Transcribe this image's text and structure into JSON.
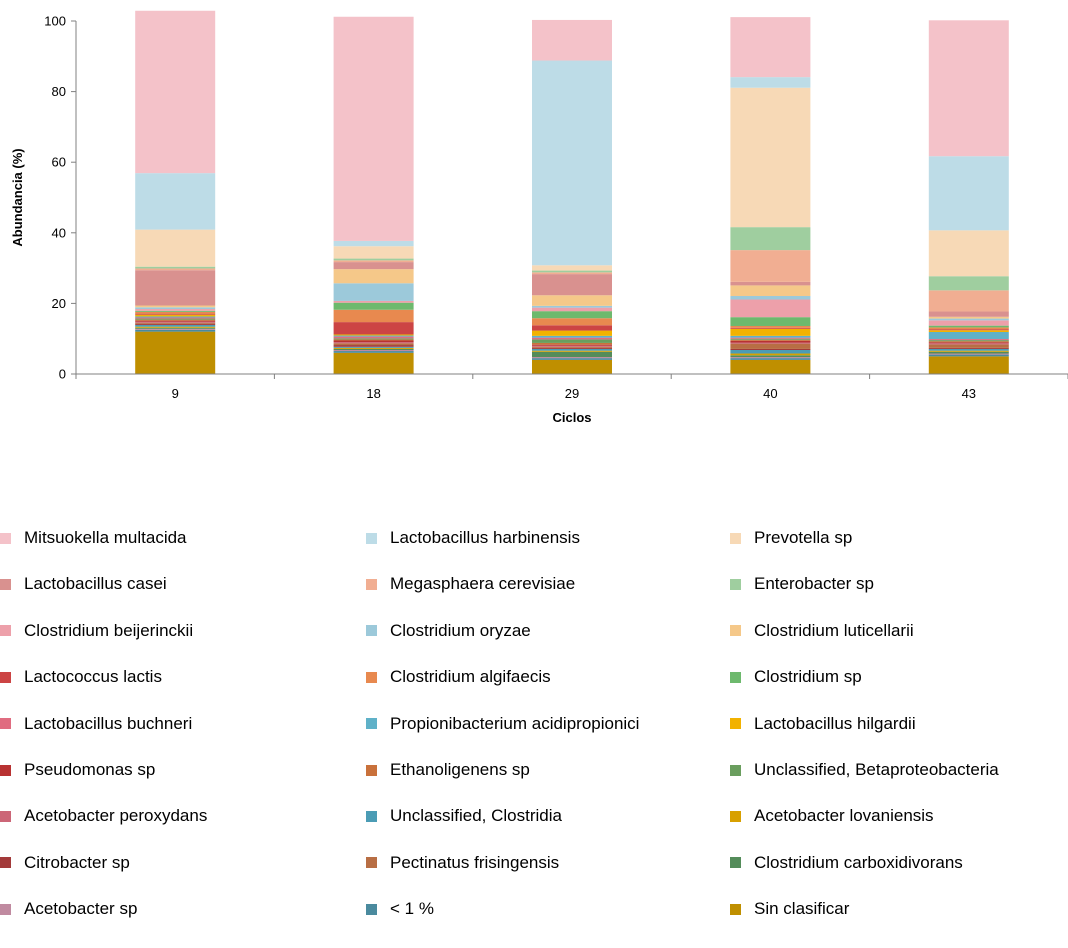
{
  "chart_data": {
    "type": "bar",
    "stacked": true,
    "xlabel": "Ciclos",
    "ylabel": "Abundancia (%)",
    "ylim": [
      0,
      100
    ],
    "yticks": [
      "0",
      "20",
      "40",
      "60",
      "80",
      "100"
    ],
    "grid": false,
    "legend_position": "bottom",
    "categories": [
      "9",
      "18",
      "29",
      "40",
      "43"
    ],
    "series": [
      {
        "name": "Sin clasificar",
        "color": "#BF8F00",
        "values": [
          12,
          6,
          4,
          4,
          5
        ]
      },
      {
        "name": "< 1 %",
        "color": "#4A8A9E",
        "values": [
          0.5,
          0.5,
          0.5,
          0.5,
          0.5
        ]
      },
      {
        "name": "Acetobacter sp",
        "color": "#C08AA0",
        "values": [
          0.3,
          0.3,
          0.3,
          0.3,
          0.3
        ]
      },
      {
        "name": "Clostridium carboxidivorans",
        "color": "#548C5A",
        "values": [
          0.3,
          0.3,
          1.5,
          0.5,
          0.5
        ]
      },
      {
        "name": "Acetobacter lovaniensis",
        "color": "#D8A000",
        "values": [
          0.3,
          0.3,
          0.3,
          0.5,
          0.3
        ]
      },
      {
        "name": "Unclassified,  Clostridia",
        "color": "#4B9CB5",
        "values": [
          0.5,
          0.3,
          0.5,
          1,
          0.5
        ]
      },
      {
        "name": "Citrobacter sp",
        "color": "#A33A3A",
        "values": [
          0.3,
          0.5,
          0.3,
          0.3,
          0.3
        ]
      },
      {
        "name": "Pectinatus frisingensis",
        "color": "#B86E44",
        "values": [
          0.3,
          0.5,
          0.3,
          1.5,
          1
        ]
      },
      {
        "name": "Acetobacter peroxydans",
        "color": "#CC6677",
        "values": [
          0.3,
          0.3,
          0.3,
          0.3,
          0.3
        ]
      },
      {
        "name": "Pseudomonas sp",
        "color": "#B83232",
        "values": [
          0.3,
          0.5,
          0.3,
          0.5,
          0.3
        ]
      },
      {
        "name": "Ethanoligenens sp",
        "color": "#C9713B",
        "values": [
          0.3,
          0.3,
          0.5,
          0.3,
          0.3
        ]
      },
      {
        "name": "Unclassified,  Betaproteobacteria",
        "color": "#6A9E5E",
        "values": [
          0.3,
          0.3,
          1,
          0.3,
          0.3
        ]
      },
      {
        "name": "Lactobacillus buchneri",
        "color": "#E06C80",
        "values": [
          0.3,
          0.5,
          0.5,
          0.3,
          0.3
        ]
      },
      {
        "name": "Propionibacterium acidipropionici",
        "color": "#5FB1C8",
        "values": [
          0.3,
          0.3,
          0.5,
          0.5,
          2
        ]
      },
      {
        "name": "Lactobacillus hilgardii",
        "color": "#F2B200",
        "values": [
          0.5,
          0.3,
          1.5,
          2,
          0.5
        ]
      },
      {
        "name": "Lactococcus lactis",
        "color": "#CC4444",
        "values": [
          0.3,
          3.5,
          1.5,
          0.3,
          0.3
        ]
      },
      {
        "name": "Clostridium algifaecis",
        "color": "#E8894F",
        "values": [
          0.5,
          3.5,
          2,
          0.5,
          0.5
        ]
      },
      {
        "name": "Clostridium sp",
        "color": "#6DB96D",
        "values": [
          0.3,
          2,
          2,
          2.5,
          0.5
        ]
      },
      {
        "name": "Clostridium beijerinckii",
        "color": "#EDA0AA",
        "values": [
          0.5,
          0.5,
          1,
          5,
          1.5
        ]
      },
      {
        "name": "Clostridium oryzae",
        "color": "#9CC9DA",
        "values": [
          0.5,
          5,
          0.5,
          1,
          0.5
        ]
      },
      {
        "name": "Clostridium luticellarii",
        "color": "#F5C889",
        "values": [
          0.5,
          4,
          3,
          3,
          0.5
        ]
      },
      {
        "name": "Lactobacillus casei",
        "color": "#D9918F",
        "values": [
          10,
          2,
          6,
          1,
          1.5
        ]
      },
      {
        "name": "Megasphaera cerevisiae",
        "color": "#F1AE92",
        "values": [
          0.5,
          0.5,
          0.5,
          9,
          6
        ]
      },
      {
        "name": "Enterobacter sp",
        "color": "#9FCE9F",
        "values": [
          0.5,
          0.5,
          0.5,
          6.5,
          4
        ]
      },
      {
        "name": "Prevotella sp",
        "color": "#F7D9B6",
        "values": [
          10.5,
          3.5,
          1.5,
          39.5,
          13
        ]
      },
      {
        "name": "Lactobacillus harbinensis",
        "color": "#BDDCE7",
        "values": [
          16,
          1.5,
          58,
          3,
          21
        ]
      },
      {
        "name": "Mitsuokella multacida",
        "color": "#F4C2C9",
        "values": [
          46,
          63.5,
          11.5,
          17,
          38.5
        ]
      }
    ]
  },
  "legend_order": [
    "Mitsuokella multacida",
    "Lactobacillus harbinensis",
    "Prevotella sp",
    "Lactobacillus casei",
    "Megasphaera cerevisiae",
    "Enterobacter sp",
    "Clostridium beijerinckii",
    "Clostridium oryzae",
    "Clostridium luticellarii",
    "Lactococcus lactis",
    "Clostridium algifaecis",
    "Clostridium sp",
    "Lactobacillus buchneri",
    "Propionibacterium acidipropionici",
    "Lactobacillus hilgardii",
    "Pseudomonas sp",
    "Ethanoligenens sp",
    "Unclassified,  Betaproteobacteria",
    "Acetobacter peroxydans",
    "Unclassified,  Clostridia",
    "Acetobacter lovaniensis",
    "Citrobacter sp",
    "Pectinatus frisingensis",
    "Clostridium carboxidivorans",
    "Acetobacter sp",
    "< 1 %",
    "Sin clasificar"
  ]
}
